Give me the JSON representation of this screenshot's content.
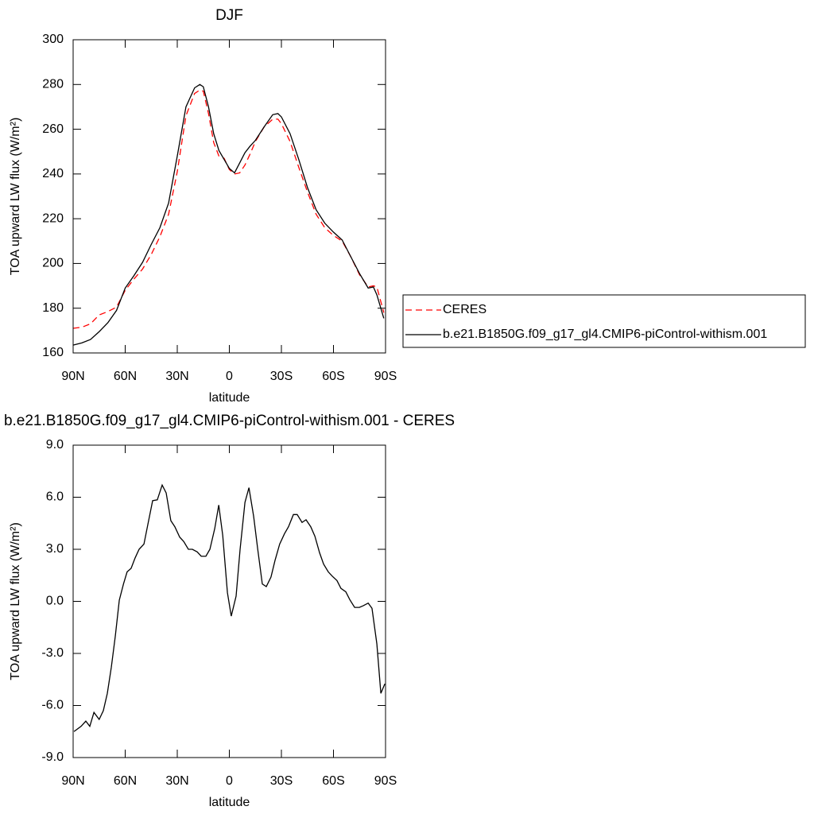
{
  "chart_data": [
    {
      "type": "line",
      "title": "DJF",
      "x_label": "latitude",
      "y_label": "TOA upward LW flux (W/m²)",
      "x": [
        90,
        85,
        80,
        75,
        70,
        65,
        60,
        55,
        50,
        45,
        40,
        35,
        30,
        25,
        20,
        17,
        15,
        12,
        9,
        6,
        3,
        0,
        -3,
        -6,
        -9,
        -12,
        -15,
        -20,
        -25,
        -28,
        -30,
        -35,
        -40,
        -45,
        -50,
        -55,
        -60,
        -65,
        -70,
        -75,
        -80,
        -83,
        -85,
        -89
      ],
      "xlim": [
        90,
        -90
      ],
      "xticks": [
        {
          "value": 90,
          "label": "90N"
        },
        {
          "value": 60,
          "label": "60N"
        },
        {
          "value": 30,
          "label": "30N"
        },
        0,
        {
          "value": -30,
          "label": "30S"
        },
        {
          "value": -60,
          "label": "60S"
        },
        {
          "value": -90,
          "label": "90S"
        }
      ],
      "ylim": [
        160,
        300
      ],
      "yticks": [
        160,
        180,
        200,
        220,
        240,
        260,
        280,
        300
      ],
      "legend": "right",
      "series": [
        {
          "name": "CERES",
          "color": "#ff0000",
          "line_style": "dashed",
          "values": [
            171,
            171.5,
            173,
            177,
            178.5,
            180.5,
            188,
            193,
            197.5,
            204,
            212,
            222,
            241,
            266,
            276,
            277.5,
            277,
            267,
            254,
            248,
            247,
            242,
            240,
            240.5,
            244,
            249,
            254.5,
            261,
            264.5,
            264.5,
            262.5,
            254.5,
            243,
            232,
            222,
            216,
            212.5,
            210,
            203,
            195,
            189.5,
            190,
            189.5,
            178
          ]
        },
        {
          "name": "b.e21.B1850G.f09_g17_gl4.CMIP6-piControl-withism.001",
          "color": "#000000",
          "line_style": "solid",
          "values": [
            163.5,
            164.5,
            166,
            169.5,
            173.5,
            179,
            189,
            194.5,
            200.5,
            208.5,
            216,
            227,
            248,
            270,
            278.5,
            280,
            279,
            270,
            258,
            250.5,
            246.5,
            242.5,
            240.5,
            245,
            249.5,
            252.5,
            255,
            261,
            266.5,
            267,
            265.5,
            258,
            246.5,
            234,
            224,
            218,
            214,
            210.5,
            203,
            195.5,
            189,
            189.5,
            186,
            175.5
          ]
        }
      ]
    },
    {
      "type": "line",
      "title": "b.e21.B1850G.f09_g17_gl4.CMIP6-piControl-withism.001 - CERES",
      "x_label": "latitude",
      "y_label": "TOA upward LW flux (W/m²)",
      "x": [
        89.5,
        85.4,
        82.7,
        80.4,
        78,
        75,
        72.6,
        70.3,
        68,
        65.7,
        63.4,
        61,
        58.9,
        56.6,
        54.3,
        52,
        49.2,
        47,
        44.2,
        41.5,
        38.7,
        36.4,
        33.7,
        31.4,
        28.6,
        26.3,
        23.6,
        21.3,
        18.5,
        16.2,
        13.5,
        11.2,
        8.4,
        6.1,
        3.8,
        1.1,
        -1.1,
        -3.9,
        -6.2,
        -9,
        -11.3,
        -14,
        -16.3,
        -19,
        -21.3,
        -24,
        -26.3,
        -29,
        -31.8,
        -34.1,
        -36.9,
        -39.1,
        -41.9,
        -44.2,
        -46.9,
        -49.3,
        -52,
        -54.3,
        -57,
        -59.3,
        -62,
        -64.3,
        -67.1,
        -69.4,
        -72.2,
        -74.9,
        -77.2,
        -80,
        -82.2,
        -85,
        -87.3,
        -89.6
      ],
      "xlim": [
        90,
        -90
      ],
      "xticks": [
        {
          "value": 90,
          "label": "90N"
        },
        {
          "value": 60,
          "label": "60N"
        },
        {
          "value": 30,
          "label": "30N"
        },
        0,
        {
          "value": -30,
          "label": "30S"
        },
        {
          "value": -60,
          "label": "60S"
        },
        {
          "value": -90,
          "label": "90S"
        }
      ],
      "ylim": [
        -9,
        9
      ],
      "yticks": [
        {
          "value": -9,
          "label": "-9.0"
        },
        {
          "value": -6,
          "label": "-6.0"
        },
        {
          "value": -3,
          "label": "-3.0"
        },
        {
          "value": 0,
          "label": "0.0"
        },
        {
          "value": 3,
          "label": "3.0"
        },
        {
          "value": 6,
          "label": "6.0"
        },
        {
          "value": 9,
          "label": "9.0"
        }
      ],
      "series": [
        {
          "color": "#000000",
          "line_style": "solid",
          "values": [
            -7.5,
            -7.2,
            -6.9,
            -7.2,
            -6.4,
            -6.8,
            -6.3,
            -5.3,
            -3.8,
            -2.0,
            0.07,
            1.0,
            1.7,
            1.9,
            2.5,
            3.0,
            3.3,
            4.4,
            5.8,
            5.85,
            6.7,
            6.25,
            4.65,
            4.3,
            3.7,
            3.45,
            3.0,
            3.0,
            2.85,
            2.6,
            2.6,
            3.0,
            4.2,
            5.55,
            3.8,
            0.5,
            -0.85,
            0.3,
            3.0,
            5.7,
            6.55,
            4.9,
            3.05,
            1.0,
            0.85,
            1.4,
            2.35,
            3.3,
            3.9,
            4.3,
            5.0,
            5.0,
            4.55,
            4.7,
            4.3,
            3.75,
            2.8,
            2.15,
            1.7,
            1.45,
            1.2,
            0.75,
            0.55,
            0.1,
            -0.35,
            -0.35,
            -0.25,
            -0.1,
            -0.4,
            -2.45,
            -5.3,
            -4.75
          ]
        }
      ]
    }
  ]
}
